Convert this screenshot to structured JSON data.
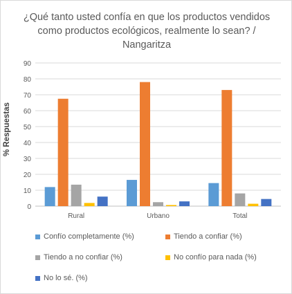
{
  "chart_data": {
    "type": "bar",
    "title_lines": [
      "¿Qué tanto usted confía en que los productos vendidos",
      "como productos ecológicos, realmente lo sean? /",
      "Nangaritza"
    ],
    "xlabel": "",
    "ylabel": "% Respuestas",
    "ylim": [
      0,
      90
    ],
    "yticks": [
      0,
      10,
      20,
      30,
      40,
      50,
      60,
      70,
      80,
      90
    ],
    "grid": true,
    "legend_position": "bottom",
    "categories": [
      "Rural",
      "Urbano",
      "Total"
    ],
    "series": [
      {
        "name": "Confío completamente (%)",
        "color": "#5b9bd5",
        "values": [
          12,
          16.5,
          14.5
        ]
      },
      {
        "name": "Tiendo a confiar (%)",
        "color": "#ed7d31",
        "values": [
          67.5,
          78,
          73
        ]
      },
      {
        "name": "Tiendo a no confiar (%)",
        "color": "#a5a5a5",
        "values": [
          13.5,
          2.5,
          8
        ]
      },
      {
        "name": "No confío para nada (%)",
        "color": "#ffc000",
        "values": [
          2,
          0.7,
          1.5
        ]
      },
      {
        "name": "No lo sé. (%)",
        "color": "#4472c4",
        "values": [
          6,
          3,
          4.5
        ]
      }
    ]
  }
}
